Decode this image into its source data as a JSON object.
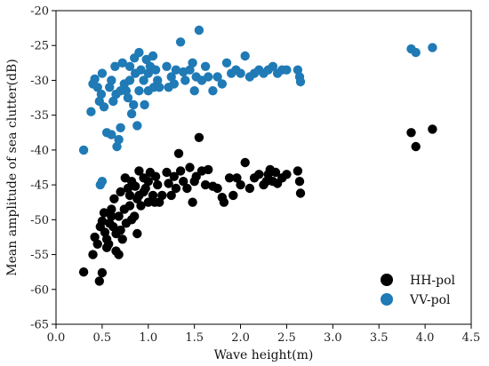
{
  "chart_data": {
    "type": "scatter",
    "title": "",
    "xlabel": "Wave height(m)",
    "ylabel": "Mean amplitude of sea clutter(dB)",
    "xlim": [
      0.0,
      4.5
    ],
    "ylim": [
      -65,
      -20
    ],
    "xticks": [
      "0.0",
      "0.5",
      "1.0",
      "1.5",
      "2.0",
      "2.5",
      "3.0",
      "3.5",
      "4.0",
      "4.5"
    ],
    "yticks": [
      "-20",
      "-25",
      "-30",
      "-35",
      "-40",
      "-45",
      "-50",
      "-55",
      "-60",
      "-65"
    ],
    "grid": false,
    "legend_position": "bottom-right",
    "series": [
      {
        "name": "HH-pol",
        "color": "#000000",
        "points": [
          [
            0.3,
            -57.5
          ],
          [
            0.4,
            -55.0
          ],
          [
            0.42,
            -52.5
          ],
          [
            0.45,
            -53.5
          ],
          [
            0.47,
            -58.8
          ],
          [
            0.5,
            -57.6
          ],
          [
            0.48,
            -51.0
          ],
          [
            0.5,
            -50.2
          ],
          [
            0.52,
            -49.0
          ],
          [
            0.53,
            -51.8
          ],
          [
            0.55,
            -54.0
          ],
          [
            0.55,
            -52.8
          ],
          [
            0.57,
            -53.5
          ],
          [
            0.58,
            -50.5
          ],
          [
            0.6,
            -49.5
          ],
          [
            0.6,
            -48.5
          ],
          [
            0.62,
            -51.0
          ],
          [
            0.63,
            -47.0
          ],
          [
            0.65,
            -52.0
          ],
          [
            0.65,
            -54.5
          ],
          [
            0.68,
            -55.0
          ],
          [
            0.68,
            -49.5
          ],
          [
            0.7,
            -46.0
          ],
          [
            0.7,
            -51.5
          ],
          [
            0.72,
            -52.8
          ],
          [
            0.74,
            -48.5
          ],
          [
            0.75,
            -44.0
          ],
          [
            0.76,
            -50.5
          ],
          [
            0.78,
            -45.5
          ],
          [
            0.8,
            -48.0
          ],
          [
            0.8,
            -46.5
          ],
          [
            0.82,
            -50.0
          ],
          [
            0.82,
            -44.5
          ],
          [
            0.85,
            -49.5
          ],
          [
            0.86,
            -45.2
          ],
          [
            0.88,
            -47.0
          ],
          [
            0.88,
            -52.0
          ],
          [
            0.9,
            -43.0
          ],
          [
            0.9,
            -46.5
          ],
          [
            0.92,
            -48.0
          ],
          [
            0.95,
            -44.0
          ],
          [
            0.95,
            -46.0
          ],
          [
            0.97,
            -45.5
          ],
          [
            1.0,
            -44.5
          ],
          [
            1.0,
            -47.5
          ],
          [
            1.02,
            -43.2
          ],
          [
            1.05,
            -46.5
          ],
          [
            1.07,
            -47.5
          ],
          [
            1.08,
            -43.8
          ],
          [
            1.1,
            -45.0
          ],
          [
            1.12,
            -47.5
          ],
          [
            1.15,
            -46.5
          ],
          [
            1.2,
            -43.2
          ],
          [
            1.22,
            -44.8
          ],
          [
            1.25,
            -46.5
          ],
          [
            1.28,
            -43.8
          ],
          [
            1.3,
            -45.5
          ],
          [
            1.33,
            -40.5
          ],
          [
            1.35,
            -43.0
          ],
          [
            1.38,
            -44.5
          ],
          [
            1.42,
            -45.5
          ],
          [
            1.45,
            -42.5
          ],
          [
            1.48,
            -47.5
          ],
          [
            1.5,
            -44.5
          ],
          [
            1.52,
            -43.8
          ],
          [
            1.55,
            -38.2
          ],
          [
            1.58,
            -43.0
          ],
          [
            1.62,
            -45.0
          ],
          [
            1.65,
            -42.8
          ],
          [
            1.7,
            -45.2
          ],
          [
            1.75,
            -45.5
          ],
          [
            1.8,
            -46.8
          ],
          [
            1.82,
            -47.5
          ],
          [
            1.88,
            -44.0
          ],
          [
            1.92,
            -46.5
          ],
          [
            1.96,
            -44.0
          ],
          [
            2.0,
            -45.0
          ],
          [
            2.05,
            -41.8
          ],
          [
            2.1,
            -45.5
          ],
          [
            2.15,
            -44.0
          ],
          [
            2.2,
            -43.5
          ],
          [
            2.25,
            -45.0
          ],
          [
            2.28,
            -44.5
          ],
          [
            2.3,
            -43.5
          ],
          [
            2.32,
            -42.8
          ],
          [
            2.35,
            -44.5
          ],
          [
            2.38,
            -43.2
          ],
          [
            2.4,
            -44.8
          ],
          [
            2.45,
            -44.0
          ],
          [
            2.5,
            -43.5
          ],
          [
            2.62,
            -43.0
          ],
          [
            2.64,
            -44.5
          ],
          [
            2.65,
            -46.2
          ],
          [
            3.85,
            -37.5
          ],
          [
            3.9,
            -39.5
          ],
          [
            4.08,
            -37.0
          ]
        ]
      },
      {
        "name": "VV-pol",
        "color": "#1f7ab5",
        "points": [
          [
            0.3,
            -40.0
          ],
          [
            0.38,
            -34.5
          ],
          [
            0.4,
            -30.5
          ],
          [
            0.42,
            -29.8
          ],
          [
            0.45,
            -31.0
          ],
          [
            0.47,
            -33.0
          ],
          [
            0.48,
            -45.0
          ],
          [
            0.49,
            -32.0
          ],
          [
            0.5,
            -44.5
          ],
          [
            0.5,
            -29.0
          ],
          [
            0.52,
            -33.8
          ],
          [
            0.55,
            -37.5
          ],
          [
            0.58,
            -31.0
          ],
          [
            0.6,
            -30.0
          ],
          [
            0.6,
            -37.8
          ],
          [
            0.62,
            -33.0
          ],
          [
            0.64,
            -28.0
          ],
          [
            0.65,
            -32.0
          ],
          [
            0.66,
            -39.5
          ],
          [
            0.68,
            -38.5
          ],
          [
            0.7,
            -31.5
          ],
          [
            0.7,
            -36.8
          ],
          [
            0.72,
            -27.5
          ],
          [
            0.74,
            -30.5
          ],
          [
            0.76,
            -31.5
          ],
          [
            0.78,
            -32.5
          ],
          [
            0.8,
            -28.0
          ],
          [
            0.8,
            -30.0
          ],
          [
            0.82,
            -34.8
          ],
          [
            0.84,
            -33.5
          ],
          [
            0.85,
            -26.8
          ],
          [
            0.86,
            -29.0
          ],
          [
            0.88,
            -36.5
          ],
          [
            0.9,
            -31.5
          ],
          [
            0.9,
            -26.0
          ],
          [
            0.92,
            -28.5
          ],
          [
            0.95,
            -30.0
          ],
          [
            0.96,
            -33.5
          ],
          [
            0.98,
            -27.0
          ],
          [
            1.0,
            -31.5
          ],
          [
            1.0,
            -29.0
          ],
          [
            1.02,
            -28.0
          ],
          [
            1.05,
            -26.5
          ],
          [
            1.06,
            -31.0
          ],
          [
            1.08,
            -28.5
          ],
          [
            1.1,
            -30.0
          ],
          [
            1.12,
            -31.0
          ],
          [
            1.2,
            -28.0
          ],
          [
            1.22,
            -31.0
          ],
          [
            1.25,
            -29.5
          ],
          [
            1.28,
            -30.5
          ],
          [
            1.3,
            -28.5
          ],
          [
            1.35,
            -24.5
          ],
          [
            1.38,
            -28.8
          ],
          [
            1.4,
            -30.0
          ],
          [
            1.45,
            -28.5
          ],
          [
            1.48,
            -27.5
          ],
          [
            1.5,
            -31.5
          ],
          [
            1.52,
            -29.5
          ],
          [
            1.55,
            -22.8
          ],
          [
            1.58,
            -30.0
          ],
          [
            1.62,
            -28.0
          ],
          [
            1.65,
            -29.5
          ],
          [
            1.7,
            -31.5
          ],
          [
            1.75,
            -29.5
          ],
          [
            1.8,
            -30.5
          ],
          [
            1.85,
            -27.5
          ],
          [
            1.9,
            -29.0
          ],
          [
            1.95,
            -28.5
          ],
          [
            2.0,
            -29.0
          ],
          [
            2.05,
            -26.5
          ],
          [
            2.1,
            -29.5
          ],
          [
            2.15,
            -29.0
          ],
          [
            2.2,
            -28.5
          ],
          [
            2.25,
            -29.0
          ],
          [
            2.3,
            -28.5
          ],
          [
            2.35,
            -28.0
          ],
          [
            2.4,
            -29.0
          ],
          [
            2.45,
            -28.5
          ],
          [
            2.5,
            -28.5
          ],
          [
            2.62,
            -28.5
          ],
          [
            2.64,
            -29.5
          ],
          [
            2.65,
            -30.2
          ],
          [
            3.85,
            -25.5
          ],
          [
            3.9,
            -26.0
          ],
          [
            4.08,
            -25.3
          ]
        ]
      }
    ]
  }
}
